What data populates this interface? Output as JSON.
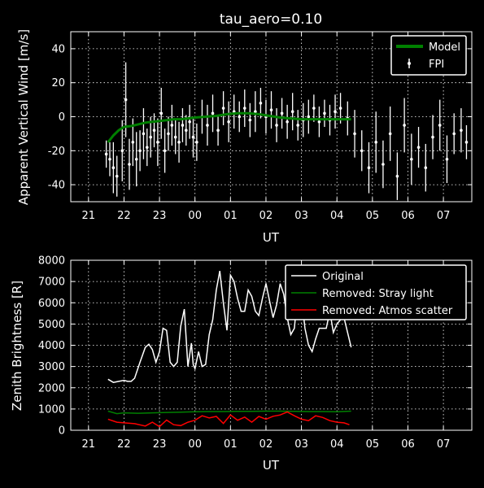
{
  "colors": {
    "background": "#000000",
    "axes": "#ffffff",
    "model": "#008000",
    "fpi": "#ffffff",
    "stray": "#008000",
    "atmos": "#ff0000"
  },
  "chart_data": [
    {
      "type": "line",
      "title": "tau_aero=0.10",
      "xlabel": "UT",
      "ylabel": "Apparent Vertical Wind [m/s]",
      "xlim": [
        20.5,
        31.8
      ],
      "ylim": [
        -50,
        50
      ],
      "xtick_labels": [
        "21",
        "22",
        "23",
        "00",
        "01",
        "02",
        "03",
        "04",
        "05",
        "06",
        "07"
      ],
      "yticks": [
        -40,
        -20,
        0,
        20,
        40
      ],
      "grid": true,
      "legend_position": "top-right",
      "series": [
        {
          "name": "Model",
          "kind": "line",
          "x": [
            21.55,
            21.7,
            21.85,
            22.0,
            22.2,
            22.4,
            22.6,
            22.8,
            23.0,
            23.2,
            23.4,
            23.6,
            23.8,
            24.0,
            24.3,
            24.6,
            24.9,
            25.2,
            25.5,
            25.8,
            26.1,
            26.4,
            26.7,
            27.0,
            27.3,
            27.6,
            27.9,
            28.2,
            28.4
          ],
          "y": [
            -15,
            -11,
            -8,
            -6,
            -5.5,
            -4.5,
            -3.5,
            -3,
            -2.5,
            -2,
            -1.5,
            -1.5,
            -1,
            -0.5,
            0,
            0.5,
            1.5,
            2,
            2,
            1.5,
            0.5,
            -0.5,
            -1,
            -1.5,
            -1.5,
            -1.5,
            -1.5,
            -1.5,
            -1.5
          ]
        },
        {
          "name": "FPI",
          "kind": "errorbar",
          "x": [
            21.5,
            21.6,
            21.7,
            21.8,
            21.95,
            22.05,
            22.15,
            22.25,
            22.35,
            22.45,
            22.55,
            22.65,
            22.75,
            22.85,
            22.95,
            23.05,
            23.15,
            23.25,
            23.35,
            23.45,
            23.55,
            23.65,
            23.75,
            23.85,
            23.95,
            24.05,
            24.2,
            24.35,
            24.5,
            24.65,
            24.8,
            24.95,
            25.1,
            25.25,
            25.4,
            25.55,
            25.7,
            25.85,
            26.0,
            26.15,
            26.3,
            26.45,
            26.6,
            26.75,
            26.9,
            27.05,
            27.2,
            27.35,
            27.5,
            27.65,
            27.8,
            27.95,
            28.1,
            28.3,
            28.5,
            28.7,
            28.9,
            29.1,
            29.3,
            29.5,
            29.7,
            29.9,
            30.1,
            30.3,
            30.5,
            30.7,
            30.9,
            31.1,
            31.3,
            31.5,
            31.65
          ],
          "y": [
            -22,
            -25,
            -30,
            -35,
            -20,
            10,
            -28,
            -15,
            -25,
            -20,
            -10,
            -18,
            -12,
            -8,
            -15,
            2,
            -20,
            -10,
            -5,
            -12,
            -15,
            -5,
            -8,
            -3,
            -12,
            -15,
            0,
            -5,
            2,
            -8,
            5,
            -3,
            3,
            0,
            5,
            -2,
            3,
            8,
            0,
            4,
            -5,
            2,
            -3,
            3,
            -5,
            -2,
            0,
            5,
            -3,
            2,
            -2,
            3,
            5,
            -1,
            -10,
            -20,
            -30,
            -15,
            -28,
            -10,
            -35,
            -5,
            -25,
            -18,
            -30,
            -12,
            -5,
            -25,
            -10,
            -8,
            -15
          ],
          "err": [
            8,
            10,
            15,
            12,
            18,
            22,
            15,
            14,
            16,
            12,
            15,
            11,
            12,
            10,
            14,
            15,
            13,
            10,
            12,
            10,
            12,
            10,
            9,
            10,
            12,
            11,
            10,
            12,
            11,
            9,
            10,
            12,
            10,
            9,
            11,
            10,
            12,
            9,
            10,
            11,
            10,
            9,
            10,
            11,
            9,
            10,
            10,
            8,
            9,
            8,
            9,
            10,
            9,
            10,
            14,
            12,
            15,
            18,
            14,
            16,
            14,
            16,
            15,
            12,
            14,
            13,
            15,
            14,
            12,
            13,
            10
          ]
        }
      ]
    },
    {
      "type": "line",
      "xlabel": "UT",
      "ylabel": "Zenith Brightness [R]",
      "xlim": [
        20.5,
        31.8
      ],
      "ylim": [
        0,
        8000
      ],
      "xtick_labels": [
        "21",
        "22",
        "23",
        "00",
        "01",
        "02",
        "03",
        "04",
        "05",
        "06",
        "07"
      ],
      "yticks": [
        0,
        1000,
        2000,
        3000,
        4000,
        5000,
        6000,
        7000,
        8000
      ],
      "grid": true,
      "legend_position": "top-right",
      "series": [
        {
          "name": "Original",
          "x": [
            21.55,
            21.7,
            21.85,
            22.0,
            22.1,
            22.2,
            22.3,
            22.45,
            22.6,
            22.7,
            22.8,
            22.9,
            23.0,
            23.1,
            23.2,
            23.3,
            23.4,
            23.5,
            23.6,
            23.7,
            23.8,
            23.9,
            23.95,
            24.0,
            24.1,
            24.2,
            24.3,
            24.4,
            24.5,
            24.6,
            24.7,
            24.8,
            24.9,
            25.0,
            25.1,
            25.2,
            25.3,
            25.4,
            25.5,
            25.6,
            25.7,
            25.8,
            25.9,
            26.0,
            26.1,
            26.2,
            26.3,
            26.4,
            26.5,
            26.6,
            26.7,
            26.8,
            26.9,
            27.0,
            27.1,
            27.2,
            27.3,
            27.4,
            27.5,
            27.6,
            27.7,
            27.8,
            27.9,
            28.0,
            28.1,
            28.2,
            28.3,
            28.4
          ],
          "y": [
            2400,
            2250,
            2300,
            2350,
            2300,
            2300,
            2450,
            3200,
            3900,
            4050,
            3800,
            3200,
            3700,
            4800,
            4700,
            3200,
            3000,
            3200,
            4900,
            5700,
            3000,
            4100,
            3100,
            2900,
            3700,
            3000,
            3100,
            4500,
            5200,
            6600,
            7500,
            6000,
            4700,
            7300,
            7000,
            6200,
            5600,
            5600,
            6600,
            6300,
            5600,
            5400,
            6200,
            6900,
            6100,
            5300,
            5900,
            6900,
            6400,
            5300,
            4500,
            4800,
            6600,
            6300,
            4800,
            4000,
            3700,
            4300,
            4800,
            4800,
            4800,
            5600,
            4600,
            5000,
            5200,
            5300,
            4600,
            3900
          ]
        },
        {
          "name": "Removed: Stray light",
          "x": [
            21.55,
            21.8,
            22.0,
            22.4,
            22.8,
            23.2,
            23.6,
            24.0,
            24.4,
            24.8,
            25.2,
            25.6,
            26.0,
            26.4,
            26.8,
            27.2,
            27.6,
            28.0,
            28.4
          ],
          "y": [
            900,
            780,
            820,
            800,
            820,
            840,
            850,
            870,
            880,
            880,
            890,
            890,
            900,
            900,
            890,
            880,
            880,
            870,
            900
          ]
        },
        {
          "name": "Removed: Atmos scatter",
          "x": [
            21.55,
            21.8,
            22.0,
            22.3,
            22.6,
            22.8,
            23.0,
            23.2,
            23.4,
            23.6,
            23.8,
            24.0,
            24.2,
            24.4,
            24.6,
            24.8,
            25.0,
            25.2,
            25.4,
            25.6,
            25.8,
            26.0,
            26.2,
            26.4,
            26.6,
            26.8,
            27.0,
            27.2,
            27.4,
            27.6,
            27.8,
            28.0,
            28.2,
            28.35
          ],
          "y": [
            520,
            380,
            350,
            310,
            200,
            380,
            170,
            480,
            260,
            220,
            380,
            470,
            680,
            580,
            650,
            320,
            720,
            470,
            620,
            380,
            650,
            520,
            660,
            720,
            860,
            680,
            520,
            450,
            680,
            600,
            450,
            380,
            350,
            260
          ]
        }
      ]
    }
  ]
}
